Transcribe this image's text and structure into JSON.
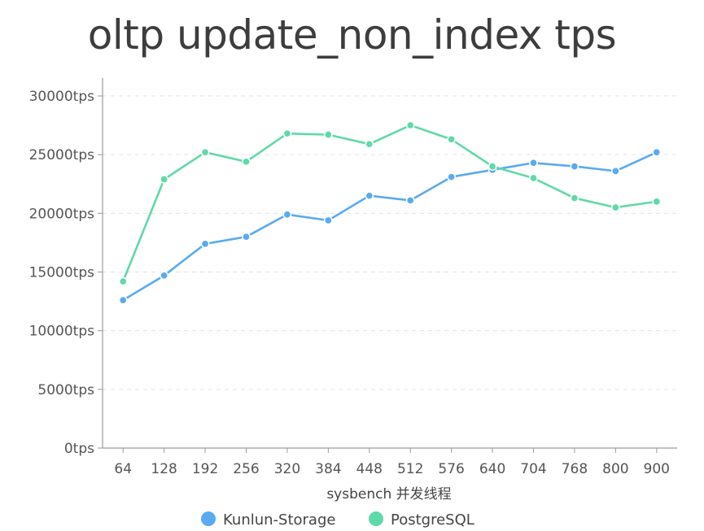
{
  "chart_data": {
    "type": "line",
    "title": "oltp update_non_index tps",
    "xlabel": "sysbench 并发线程",
    "ylabel": "",
    "categories": [
      "64",
      "128",
      "192",
      "256",
      "320",
      "384",
      "448",
      "512",
      "576",
      "640",
      "704",
      "768",
      "800",
      "900"
    ],
    "ylim": [
      0,
      30000
    ],
    "ytick_values": [
      0,
      5000,
      10000,
      15000,
      20000,
      25000,
      30000
    ],
    "ytick_labels": [
      "0tps",
      "5000tps",
      "10000tps",
      "15000tps",
      "20000tps",
      "25000tps",
      "30000tps"
    ],
    "grid": "horizontal-dashed",
    "legend_position": "bottom",
    "series": [
      {
        "name": "Kunlun-Storage",
        "color": "#5aaaf0",
        "values": [
          12600,
          14700,
          17400,
          18000,
          19900,
          19400,
          21500,
          21100,
          23100,
          23700,
          24300,
          24000,
          23600,
          25200
        ]
      },
      {
        "name": "PostgreSQL",
        "color": "#5fd9a8",
        "values": [
          14200,
          22900,
          25200,
          24400,
          26800,
          26700,
          25900,
          27500,
          26300,
          24000,
          23000,
          21300,
          20500,
          21000
        ]
      }
    ]
  }
}
